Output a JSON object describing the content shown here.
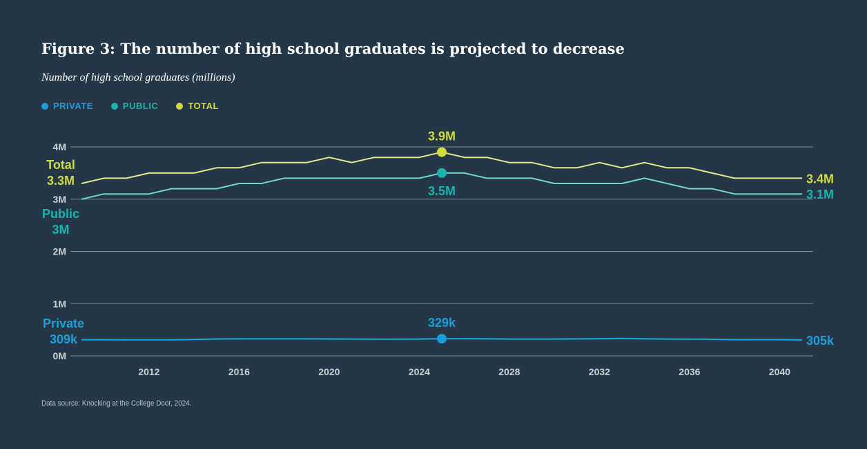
{
  "title": "Figure 3: The number of high school graduates is projected to decrease",
  "subtitle": "Number of high school graduates (millions)",
  "source": "Data source: Knocking at the College Door, 2024.",
  "legend": [
    {
      "label": "PRIVATE",
      "color": "#1aa0d6"
    },
    {
      "label": "PUBLIC",
      "color": "#19b4aa"
    },
    {
      "label": "TOTAL",
      "color": "#cedc3c"
    }
  ],
  "colors": {
    "background": "#253746",
    "total": "#e4ea8e",
    "public": "#6fd7cf",
    "private": "#1aa8dc",
    "total_label": "#cedc3c",
    "public_label": "#19b4aa",
    "private_label": "#1aa0d6",
    "grid": "#7a8896",
    "tick": "#c9d1d8"
  },
  "chart_data": {
    "type": "line",
    "title": "Figure 3: The number of high school graduates is projected to decrease",
    "ylabel": "Number of high school graduates (millions)",
    "xlim": [
      2009,
      2041
    ],
    "ylim": [
      0,
      4
    ],
    "x_ticks": [
      {
        "value": 2012,
        "label": "2012"
      },
      {
        "value": 2016,
        "label": "2016"
      },
      {
        "value": 2020,
        "label": "2020"
      },
      {
        "value": 2024,
        "label": "2024"
      },
      {
        "value": 2028,
        "label": "2028"
      },
      {
        "value": 2032,
        "label": "2032"
      },
      {
        "value": 2036,
        "label": "2036"
      },
      {
        "value": 2040,
        "label": "2040"
      }
    ],
    "y_ticks": [
      {
        "value": 0,
        "label": "0M"
      },
      {
        "value": 1,
        "label": "1M"
      },
      {
        "value": 2,
        "label": "2M"
      },
      {
        "value": 3,
        "label": "3M"
      },
      {
        "value": 4,
        "label": "4M"
      }
    ],
    "grid": true,
    "legend_position": "top-left",
    "x": [
      2009,
      2010,
      2011,
      2012,
      2013,
      2014,
      2015,
      2016,
      2017,
      2018,
      2019,
      2020,
      2021,
      2022,
      2023,
      2024,
      2025,
      2026,
      2027,
      2028,
      2029,
      2030,
      2031,
      2032,
      2033,
      2034,
      2035,
      2036,
      2037,
      2038,
      2039,
      2040,
      2041
    ],
    "series": [
      {
        "key": "total",
        "name": "TOTAL",
        "values": [
          3.3,
          3.4,
          3.4,
          3.5,
          3.5,
          3.5,
          3.6,
          3.6,
          3.7,
          3.7,
          3.7,
          3.8,
          3.7,
          3.8,
          3.8,
          3.8,
          3.9,
          3.8,
          3.8,
          3.7,
          3.7,
          3.6,
          3.6,
          3.7,
          3.6,
          3.7,
          3.6,
          3.6,
          3.5,
          3.4,
          3.4,
          3.4,
          3.4
        ]
      },
      {
        "key": "public",
        "name": "PUBLIC",
        "values": [
          3.0,
          3.1,
          3.1,
          3.1,
          3.2,
          3.2,
          3.2,
          3.3,
          3.3,
          3.4,
          3.4,
          3.4,
          3.4,
          3.4,
          3.4,
          3.4,
          3.5,
          3.5,
          3.4,
          3.4,
          3.4,
          3.3,
          3.3,
          3.3,
          3.3,
          3.4,
          3.3,
          3.2,
          3.2,
          3.1,
          3.1,
          3.1,
          3.1
        ]
      },
      {
        "key": "private",
        "name": "PRIVATE",
        "values": [
          0.309,
          0.31,
          0.307,
          0.307,
          0.308,
          0.315,
          0.323,
          0.326,
          0.327,
          0.326,
          0.326,
          0.324,
          0.322,
          0.321,
          0.321,
          0.322,
          0.329,
          0.329,
          0.326,
          0.322,
          0.322,
          0.322,
          0.325,
          0.329,
          0.333,
          0.328,
          0.322,
          0.321,
          0.318,
          0.31,
          0.312,
          0.311,
          0.305
        ]
      }
    ],
    "highlight": {
      "x": 2025,
      "points": [
        {
          "series": "total",
          "value": 3.9,
          "label": "3.9M"
        },
        {
          "series": "public",
          "value": 3.5,
          "label": "3.5M"
        },
        {
          "series": "private",
          "value": 0.329,
          "label": "329k"
        }
      ]
    },
    "start_labels": [
      {
        "series": "total",
        "lines": [
          "Total",
          "3.3M"
        ]
      },
      {
        "series": "public",
        "lines": [
          "Public",
          "3M"
        ]
      },
      {
        "series": "private",
        "lines": [
          "Private",
          "309k"
        ]
      }
    ],
    "end_labels": [
      {
        "series": "total",
        "label": "3.4M"
      },
      {
        "series": "public",
        "label": "3.1M"
      },
      {
        "series": "private",
        "label": "305k"
      }
    ]
  }
}
